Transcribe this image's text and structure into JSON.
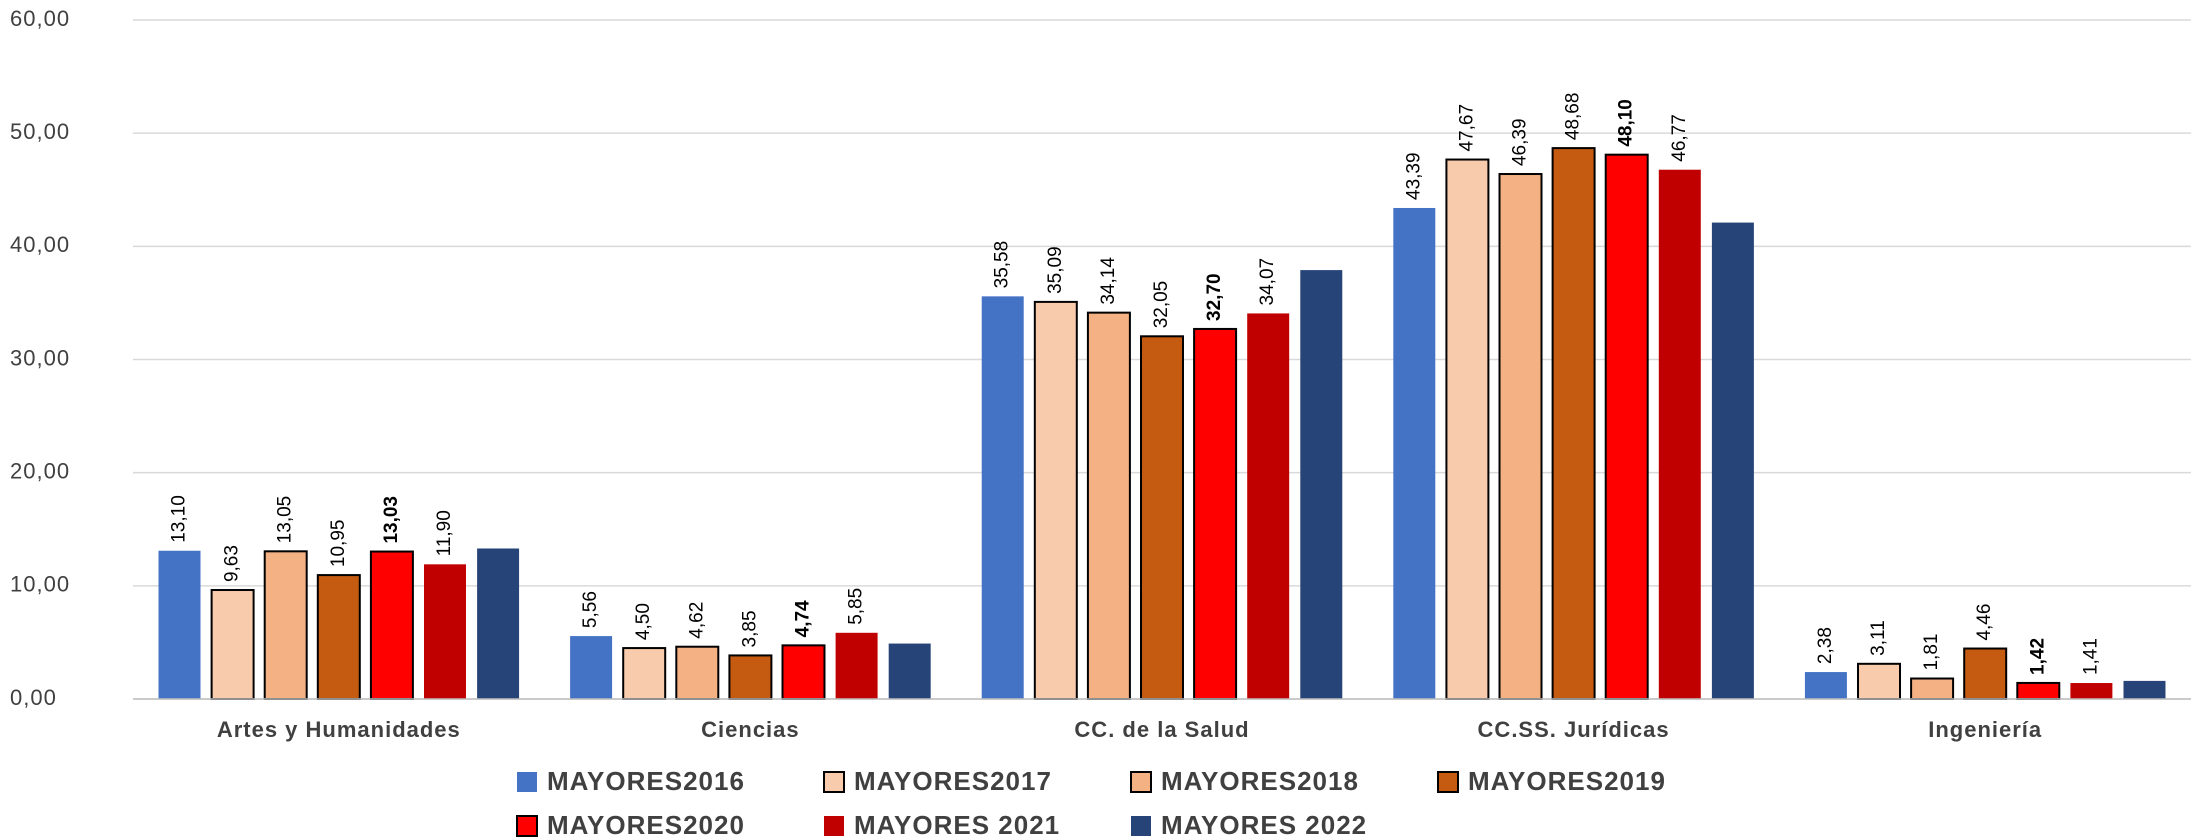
{
  "chart_data": {
    "type": "bar",
    "categories": [
      "Artes y Humanidades",
      "Ciencias",
      "CC. de la Salud",
      "CC.SS. Jurídicas",
      "Ingeniería"
    ],
    "series": [
      {
        "name": "MAYORES2016",
        "color": "#4472c4",
        "values": [
          13.1,
          5.56,
          35.58,
          43.39,
          2.38
        ],
        "value_labels": [
          "13,10",
          "5,56",
          "35,58",
          "43,39",
          "2,38"
        ]
      },
      {
        "name": "MAYORES2017",
        "color": "#f8cbad",
        "border": "#000000",
        "values": [
          9.63,
          4.5,
          35.09,
          47.67,
          3.11
        ],
        "value_labels": [
          "9,63",
          "4,50",
          "35,09",
          "47,67",
          "3,11"
        ]
      },
      {
        "name": "MAYORES2018",
        "color": "#f4b183",
        "border": "#000000",
        "values": [
          13.05,
          4.62,
          34.14,
          46.39,
          1.81
        ],
        "value_labels": [
          "13,05",
          "4,62",
          "34,14",
          "46,39",
          "1,81"
        ]
      },
      {
        "name": "MAYORES2019",
        "color": "#c55a11",
        "border": "#000000",
        "values": [
          10.95,
          3.85,
          32.05,
          48.68,
          4.46
        ],
        "value_labels": [
          "10,95",
          "3,85",
          "32,05",
          "48,68",
          "4,46"
        ]
      },
      {
        "name": "MAYORES2020",
        "color": "#ff0000",
        "border": "#000000",
        "values": [
          13.03,
          4.74,
          32.7,
          48.1,
          1.42
        ],
        "value_labels": [
          "13,03",
          "4,74",
          "32,70",
          "48,10",
          "1,42"
        ]
      },
      {
        "name": "MAYORES 2021",
        "color": "#c00000",
        "values": [
          11.9,
          5.85,
          34.07,
          46.77,
          1.41
        ],
        "value_labels": [
          "11,90",
          "5,85",
          "34,07",
          "46,77",
          "1,41"
        ]
      },
      {
        "name": "MAYORES 2022",
        "color": "#264478",
        "values": [
          13.3,
          4.9,
          37.9,
          42.1,
          1.6
        ]
      }
    ],
    "ylim": [
      0,
      60
    ],
    "yticks": [
      {
        "value": 0,
        "label": "0,00"
      },
      {
        "value": 10,
        "label": "10,00"
      },
      {
        "value": 20,
        "label": "20,00"
      },
      {
        "value": 30,
        "label": "30,00"
      },
      {
        "value": 40,
        "label": "40,00"
      },
      {
        "value": 50,
        "label": "50,00"
      },
      {
        "value": 60,
        "label": "60,00"
      }
    ],
    "grid": true,
    "legend": "bottom"
  }
}
